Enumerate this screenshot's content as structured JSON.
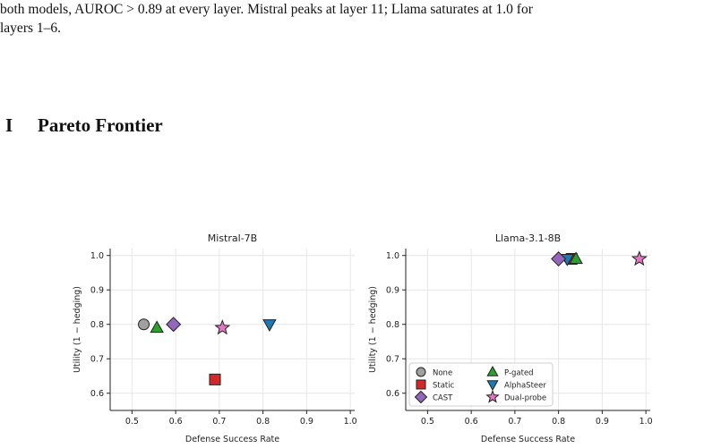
{
  "paragraph": {
    "line1": "both models, AUROC > 0.89 at every layer. Mistral peaks at layer 11; Llama saturates at 1.0 for",
    "line2": "layers 1–6."
  },
  "section": {
    "number": "I",
    "title": "Pareto Frontier"
  },
  "colors": {
    "None": "#a0a0a0",
    "Static": "#d62728",
    "CAST": "#9467bd",
    "P-gated": "#2ca02c",
    "AlphaSteer": "#1f77b4",
    "Dual-probe": "#e377c2"
  },
  "markers": {
    "None": "circle",
    "Static": "square",
    "CAST": "diamond",
    "P-gated": "triangle-up",
    "AlphaSteer": "triangle-down",
    "Dual-probe": "star"
  },
  "chart_data": [
    {
      "type": "scatter",
      "title": "Mistral-7B",
      "xlabel": "Defense Success Rate",
      "ylabel": "Utility (1 − hedging)",
      "xlim": [
        0.45,
        1.01
      ],
      "ylim": [
        0.55,
        1.02
      ],
      "xticks": [
        "0.5",
        "0.6",
        "0.7",
        "0.8",
        "0.9",
        "1.0"
      ],
      "yticks": [
        "0.6",
        "0.7",
        "0.8",
        "0.9",
        "1.0"
      ],
      "grid": true,
      "legend": "none",
      "points": [
        {
          "name": "None",
          "x": 0.527,
          "y": 0.8
        },
        {
          "name": "P-gated",
          "x": 0.557,
          "y": 0.79
        },
        {
          "name": "CAST",
          "x": 0.595,
          "y": 0.8
        },
        {
          "name": "Static",
          "x": 0.69,
          "y": 0.64
        },
        {
          "name": "Dual-probe",
          "x": 0.707,
          "y": 0.79
        },
        {
          "name": "AlphaSteer",
          "x": 0.815,
          "y": 0.8
        }
      ]
    },
    {
      "type": "scatter",
      "title": "Llama-3.1-8B",
      "xlabel": "Defense Success Rate",
      "ylabel": "Utility (1 − hedging)",
      "xlim": [
        0.45,
        1.01
      ],
      "ylim": [
        0.55,
        1.02
      ],
      "xticks": [
        "0.5",
        "0.6",
        "0.7",
        "0.8",
        "0.9",
        "1.0"
      ],
      "yticks": [
        "0.6",
        "0.7",
        "0.8",
        "0.9",
        "1.0"
      ],
      "grid": true,
      "legend": "lower-left",
      "legend_items": [
        "None",
        "Static",
        "CAST",
        "P-gated",
        "AlphaSteer",
        "Dual-probe"
      ],
      "points": [
        {
          "name": "None",
          "x": 0.825,
          "y": 0.99
        },
        {
          "name": "Static",
          "x": 0.83,
          "y": 0.99
        },
        {
          "name": "P-gated",
          "x": 0.84,
          "y": 0.99
        },
        {
          "name": "AlphaSteer",
          "x": 0.82,
          "y": 0.99
        },
        {
          "name": "CAST",
          "x": 0.8,
          "y": 0.99
        },
        {
          "name": "Dual-probe",
          "x": 0.985,
          "y": 0.99
        }
      ]
    }
  ]
}
